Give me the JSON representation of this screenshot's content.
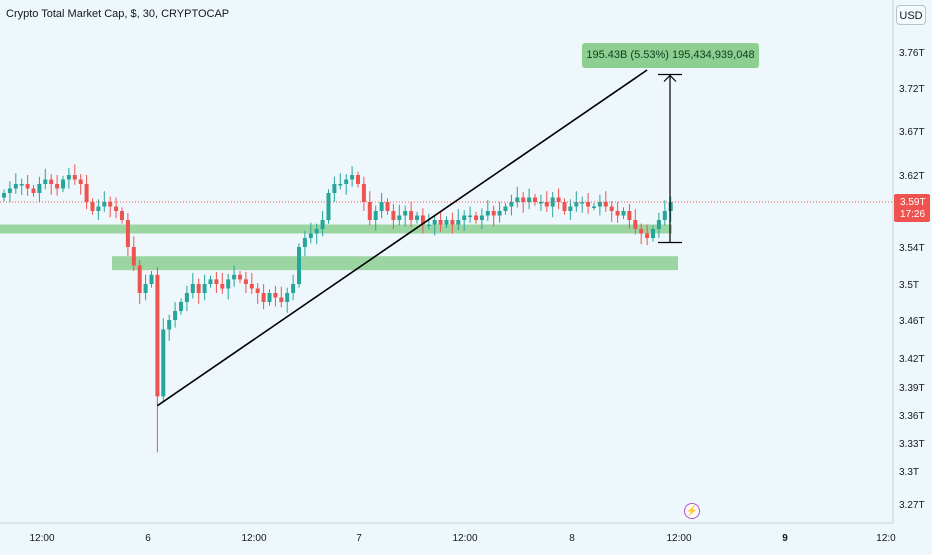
{
  "header": {
    "title": "Crypto Total Market Cap, $, 30, CRYPTOCAP",
    "currency_button": "USD"
  },
  "measure": {
    "label": "195.43B (5.53%) 195,434,939,048"
  },
  "price_badge": {
    "price": "3.59T",
    "countdown": "17:26"
  },
  "icons": {
    "alert": "lightning-icon"
  },
  "colors": {
    "background": "#eef7fb",
    "up": "#26a69a",
    "down": "#ef5350",
    "zone": "#8ccf91",
    "badge": "#ef5350"
  },
  "chart_data": {
    "type": "candlestick",
    "title": "Crypto Total Market Cap, $, 30, CRYPTOCAP",
    "y_tick_labels": [
      "3.76T",
      "3.72T",
      "3.67T",
      "3.62T",
      "3.54T",
      "3.5T",
      "3.46T",
      "3.42T",
      "3.39T",
      "3.36T",
      "3.33T",
      "3.3T",
      "3.27T"
    ],
    "x_tick_labels": [
      "12:00",
      "6",
      "12:00",
      "7",
      "12:00",
      "8",
      "12:00",
      "9",
      "12:0"
    ],
    "ylim_trillions": [
      3.26,
      3.79
    ],
    "current_price_trillions": 3.59,
    "close_trillions": [
      3.6,
      3.605,
      3.61,
      3.61,
      3.605,
      3.6,
      3.61,
      3.615,
      3.61,
      3.605,
      3.615,
      3.62,
      3.615,
      3.61,
      3.59,
      3.58,
      3.585,
      3.59,
      3.585,
      3.58,
      3.57,
      3.54,
      3.52,
      3.49,
      3.5,
      3.51,
      3.38,
      3.45,
      3.46,
      3.47,
      3.48,
      3.49,
      3.5,
      3.49,
      3.5,
      3.505,
      3.5,
      3.495,
      3.505,
      3.51,
      3.505,
      3.5,
      3.495,
      3.49,
      3.48,
      3.49,
      3.485,
      3.48,
      3.49,
      3.5,
      3.54,
      3.55,
      3.555,
      3.56,
      3.57,
      3.6,
      3.61,
      3.61,
      3.615,
      3.62,
      3.61,
      3.59,
      3.57,
      3.58,
      3.59,
      3.58,
      3.57,
      3.575,
      3.58,
      3.57,
      3.575,
      3.565,
      3.565,
      3.57,
      3.565,
      3.57,
      3.565,
      3.57,
      3.575,
      3.575,
      3.57,
      3.575,
      3.58,
      3.575,
      3.58,
      3.585,
      3.59,
      3.595,
      3.59,
      3.595,
      3.59,
      3.59,
      3.585,
      3.595,
      3.59,
      3.58,
      3.585,
      3.59,
      3.59,
      3.585,
      3.585,
      3.59,
      3.585,
      3.58,
      3.575,
      3.58,
      3.57,
      3.56,
      3.555,
      3.55,
      3.56,
      3.57,
      3.58,
      3.59
    ],
    "annotations": [
      {
        "type": "trendline",
        "from": {
          "x_candle": 26,
          "y": 3.37
        },
        "to": {
          "x_candle": 109,
          "y": 3.74
        }
      },
      {
        "type": "price_range",
        "from_y": 3.545,
        "to_y": 3.735,
        "label": "195.43B (5.53%) 195,434,939,048"
      },
      {
        "type": "zone",
        "y_low": 3.555,
        "y_high": 3.565
      },
      {
        "type": "zone",
        "y_low": 3.515,
        "y_high": 3.53
      }
    ]
  }
}
